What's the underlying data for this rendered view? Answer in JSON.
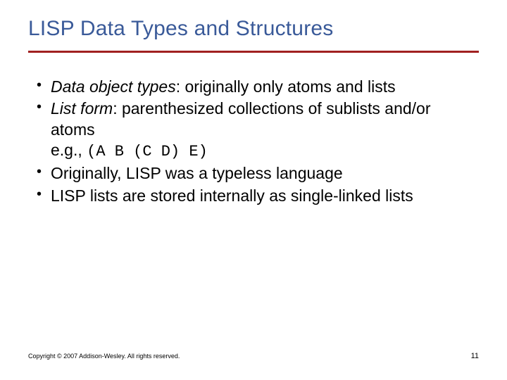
{
  "title": "LISP Data Types and Structures",
  "colors": {
    "title": "#3A5A99",
    "rule": "#a02020",
    "text": "#000000",
    "background": "#ffffff"
  },
  "typography": {
    "title_fontsize": 30,
    "body_fontsize": 23,
    "footer_fontsize": 9,
    "pagenum_fontsize": 11,
    "body_font": "Verdana",
    "mono_font": "Courier New"
  },
  "bullets": [
    {
      "term": "Data object types",
      "rest": ": originally only atoms and lists"
    },
    {
      "term": "List form",
      "rest": ": parenthesized collections of sublists and/or atoms",
      "example_prefix": "e.g., ",
      "example_code": "(A B (C D) E)"
    },
    {
      "plain": "Originally, LISP was a typeless language"
    },
    {
      "plain": "LISP lists are stored internally as single-linked lists"
    }
  ],
  "footer": {
    "copyright": "Copyright © 2007 Addison-Wesley. All rights reserved.",
    "page": "11"
  }
}
